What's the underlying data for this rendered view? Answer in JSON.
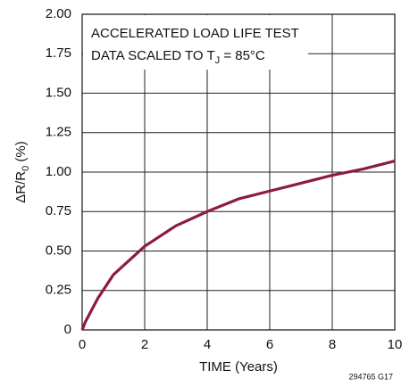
{
  "chart_data": {
    "type": "line",
    "annotation": {
      "line1": "ACCELERATED LOAD LIFE TEST",
      "line2": [
        "DATA SCALED TO T",
        "J",
        " = 85°C"
      ]
    },
    "y_label": [
      "ΔR/R",
      "0",
      " (%)"
    ],
    "x_label": "TIME (Years)",
    "footnote": "294765 G17",
    "x": [
      0,
      0.1,
      0.5,
      1,
      2,
      3,
      4,
      5,
      6,
      7,
      8,
      9,
      10
    ],
    "series": [
      {
        "color": "#8c1c3c",
        "values": [
          0,
          0.05,
          0.2,
          0.35,
          0.53,
          0.66,
          0.75,
          0.83,
          0.88,
          0.93,
          0.98,
          1.02,
          1.07
        ]
      }
    ],
    "xlim": [
      0,
      10
    ],
    "xticks": [
      0,
      2,
      4,
      6,
      8,
      10
    ],
    "ylim": [
      0,
      2
    ],
    "yticks": [
      0,
      0.25,
      {
        "value": 0.5,
        "label": "0.50"
      },
      0.75,
      {
        "value": 1,
        "label": "1.00"
      },
      1.25,
      {
        "value": 1.5,
        "label": "1.50"
      },
      1.75,
      {
        "value": 2,
        "label": "2.00"
      }
    ],
    "grid": true
  }
}
